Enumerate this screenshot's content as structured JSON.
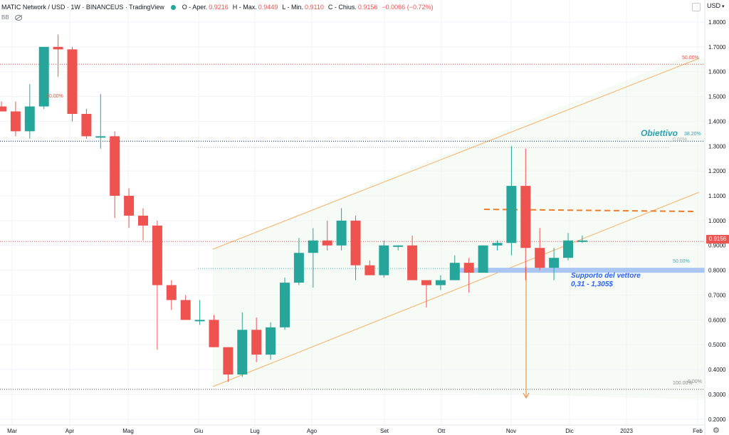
{
  "header": {
    "title": "MATIC Network / USD · 1W · BINANCEUS · TradingView",
    "open_label": "O - Aper.",
    "open": "0.9216",
    "high_label": "H - Max.",
    "high": "0.9449",
    "low_label": "L - Min.",
    "low": "0.9110",
    "close_label": "C - Chius.",
    "close": "0.9156",
    "change": "−0.0066 (−0.72%)",
    "indicator_label": "BB"
  },
  "currency": "USD",
  "current_price_tag": "0.9156",
  "colors": {
    "up": "#26a69a",
    "down": "#ef5350",
    "channel": "#f5b26b",
    "support": "#aac6f2",
    "target": "#2a9fb0"
  },
  "icons": [
    "eye-hidden-icon",
    "settings-icon"
  ],
  "chart_data": {
    "type": "candlestick",
    "timeframe": "1W",
    "ylim": [
      0.25,
      1.85
    ],
    "y_ticks": [
      "1.8000",
      "1.7000",
      "1.6000",
      "1.5000",
      "1.4000",
      "1.3000",
      "1.2000",
      "1.1000",
      "1.0000",
      "0.9000",
      "0.8000",
      "0.7000",
      "0.6000",
      "0.5000",
      "0.4000",
      "0.3000",
      "0.2000"
    ],
    "x_ticks": [
      "Mar",
      "Apr",
      "Mag",
      "Giu",
      "Lug",
      "Ago",
      "Set",
      "Ott",
      "Nov",
      "Dic",
      "2023",
      "Feb"
    ],
    "ohlc": [
      [
        1.46,
        1.48,
        1.44,
        1.44
      ],
      [
        1.44,
        1.48,
        1.34,
        1.36
      ],
      [
        1.36,
        1.55,
        1.33,
        1.46
      ],
      [
        1.46,
        1.7,
        1.45,
        1.7
      ],
      [
        1.7,
        1.75,
        1.58,
        1.69
      ],
      [
        1.69,
        1.7,
        1.4,
        1.43
      ],
      [
        1.43,
        1.45,
        1.33,
        1.34
      ],
      [
        1.34,
        1.51,
        1.29,
        1.34
      ],
      [
        1.34,
        1.36,
        1.01,
        1.1
      ],
      [
        1.1,
        1.13,
        0.97,
        1.02
      ],
      [
        1.02,
        1.05,
        0.92,
        0.98
      ],
      [
        0.98,
        1.0,
        0.48,
        0.74
      ],
      [
        0.74,
        0.76,
        0.64,
        0.68
      ],
      [
        0.68,
        0.7,
        0.6,
        0.6
      ],
      [
        0.6,
        0.68,
        0.58,
        0.6
      ],
      [
        0.6,
        0.62,
        0.49,
        0.49
      ],
      [
        0.49,
        0.49,
        0.35,
        0.38
      ],
      [
        0.38,
        0.63,
        0.37,
        0.56
      ],
      [
        0.56,
        0.61,
        0.43,
        0.46
      ],
      [
        0.46,
        0.59,
        0.44,
        0.57
      ],
      [
        0.57,
        0.77,
        0.56,
        0.75
      ],
      [
        0.75,
        0.93,
        0.74,
        0.87
      ],
      [
        0.87,
        0.97,
        0.73,
        0.92
      ],
      [
        0.92,
        1.0,
        0.88,
        0.9
      ],
      [
        0.9,
        1.05,
        0.88,
        1.0
      ],
      [
        1.0,
        1.02,
        0.76,
        0.82
      ],
      [
        0.82,
        0.84,
        0.78,
        0.78
      ],
      [
        0.78,
        0.92,
        0.77,
        0.9
      ],
      [
        0.9,
        0.9,
        0.88,
        0.9
      ],
      [
        0.9,
        0.94,
        0.76,
        0.76
      ],
      [
        0.76,
        0.76,
        0.65,
        0.74
      ],
      [
        0.74,
        0.78,
        0.72,
        0.76
      ],
      [
        0.76,
        0.86,
        0.77,
        0.83
      ],
      [
        0.83,
        0.85,
        0.71,
        0.79
      ],
      [
        0.79,
        0.9,
        0.79,
        0.9
      ],
      [
        0.9,
        0.92,
        0.88,
        0.91
      ],
      [
        0.91,
        1.3,
        0.86,
        1.14
      ],
      [
        1.14,
        1.29,
        0.76,
        0.89
      ],
      [
        0.89,
        0.97,
        0.8,
        0.81
      ],
      [
        0.81,
        0.89,
        0.76,
        0.85
      ],
      [
        0.85,
        0.95,
        0.84,
        0.92
      ],
      [
        0.92,
        0.94,
        0.91,
        0.92
      ]
    ],
    "annotations": {
      "target_label": "Obiettivo",
      "target_level": 1.32,
      "support_label_1": "Supporto del vettore",
      "support_label_2": "0,31 - 1,305$",
      "fib_labels": {
        "top_right": "50.00%",
        "left_50": "50.00%",
        "fib382": "38.20%",
        "zero": "0.00%",
        "mid50": "50.00%",
        "bottom": "100.00%",
        "bottom2": "0.00%"
      },
      "levels": {
        "red_dotted": 1.63,
        "price_line": 0.9156,
        "orange_dashed": 1.03,
        "bottom_dotted": 0.32,
        "cyan_dotted": 0.81
      }
    }
  }
}
